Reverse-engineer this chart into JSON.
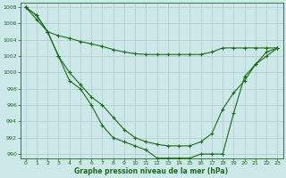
{
  "line1": {
    "x": [
      0,
      1,
      2,
      3,
      4,
      5,
      6,
      7,
      8,
      9,
      10,
      11,
      12,
      13,
      14,
      15,
      16,
      17,
      18,
      19,
      20,
      21,
      22,
      23
    ],
    "y": [
      1008,
      1006.5,
      1005,
      1002,
      999,
      998,
      996,
      993.5,
      992,
      991.5,
      991,
      990.5,
      989.5,
      989.5,
      989.5,
      989.5,
      990,
      990,
      990,
      995,
      999.5,
      1001,
      1002.5,
      1003
    ]
  },
  "line2": {
    "x": [
      0,
      1,
      2,
      3,
      4,
      5,
      6,
      7,
      8,
      9,
      10,
      11,
      12,
      13,
      14,
      15,
      16,
      17,
      18,
      19,
      20,
      21,
      22,
      23
    ],
    "y": [
      1008,
      1007,
      1005,
      1004.5,
      1004.2,
      1003.8,
      1003.5,
      1003.2,
      1002.8,
      1002.5,
      1002.3,
      1002.2,
      1002.2,
      1002.2,
      1002.2,
      1002.2,
      1002.2,
      1002.5,
      1003,
      1003,
      1003,
      1003,
      1003,
      1003
    ]
  },
  "line3": {
    "x": [
      0,
      1,
      2,
      3,
      4,
      5,
      6,
      7,
      8,
      9,
      10,
      11,
      12,
      13,
      14,
      15,
      16,
      17,
      18,
      19,
      20,
      21,
      22,
      23
    ],
    "y": [
      1008,
      1007,
      1005,
      1002,
      1000,
      998.5,
      997,
      996,
      994.5,
      993,
      992,
      991.5,
      991.2,
      991,
      991,
      991,
      991.5,
      992.5,
      995.5,
      997.5,
      999,
      1001,
      1002,
      1003
    ]
  },
  "color": "#1a6b1a",
  "bg_color": "#cde8e8",
  "grid_color": "#b0c8c8",
  "xlim": [
    -0.5,
    23.5
  ],
  "ylim": [
    989.5,
    1008.5
  ],
  "yticks": [
    990,
    992,
    994,
    996,
    998,
    1000,
    1002,
    1004,
    1006,
    1008
  ],
  "xticks": [
    0,
    1,
    2,
    3,
    4,
    5,
    6,
    7,
    8,
    9,
    10,
    11,
    12,
    13,
    14,
    15,
    16,
    17,
    18,
    19,
    20,
    21,
    22,
    23
  ],
  "xlabel": "Graphe pression niveau de la mer (hPa)",
  "marker": "+",
  "linewidth": 0.8,
  "markersize": 3.5,
  "tick_fontsize": 4.5,
  "label_fontsize": 5.5
}
